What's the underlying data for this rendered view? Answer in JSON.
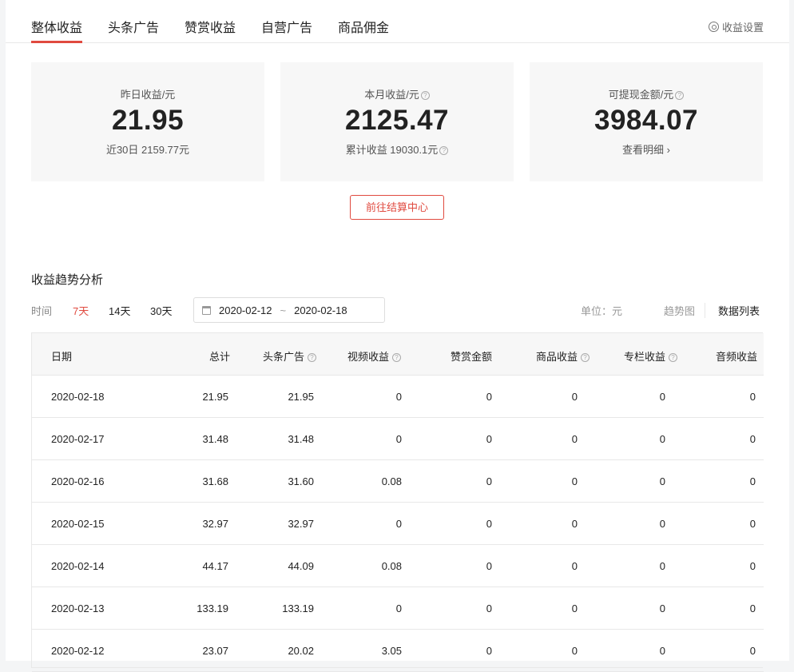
{
  "tabs": [
    "整体收益",
    "头条广告",
    "赞赏收益",
    "自营广告",
    "商品佣金"
  ],
  "settings_label": "收益设置",
  "cards": [
    {
      "label": "昨日收益/元",
      "value": "21.95",
      "sub": "近30日 2159.77元",
      "help": false
    },
    {
      "label": "本月收益/元",
      "value": "2125.47",
      "sub": "累计收益 19030.1元",
      "help": true
    },
    {
      "label": "可提现金额/元",
      "value": "3984.07",
      "sub": "查看明细 ›",
      "help": true
    }
  ],
  "settle_button": "前往结算中心",
  "section_title": "收益趋势分析",
  "filter": {
    "label": "时间",
    "options": [
      "7天",
      "14天",
      "30天"
    ],
    "active": "7天",
    "start": "2020-02-12",
    "sep": "~",
    "end": "2020-02-18",
    "unit": "单位：元",
    "view_chart": "趋势图",
    "view_table": "数据列表"
  },
  "accent": "#e04a3f",
  "table": {
    "headers": [
      "日期",
      "总计",
      "头条广告",
      "视频收益",
      "赞赏金额",
      "商品收益",
      "专栏收益",
      "音频收益"
    ],
    "rows": [
      [
        "2020-02-18",
        "21.95",
        "21.95",
        "0",
        "0",
        "0",
        "0",
        "0"
      ],
      [
        "2020-02-17",
        "31.48",
        "31.48",
        "0",
        "0",
        "0",
        "0",
        "0"
      ],
      [
        "2020-02-16",
        "31.68",
        "31.60",
        "0.08",
        "0",
        "0",
        "0",
        "0"
      ],
      [
        "2020-02-15",
        "32.97",
        "32.97",
        "0",
        "0",
        "0",
        "0",
        "0"
      ],
      [
        "2020-02-14",
        "44.17",
        "44.09",
        "0.08",
        "0",
        "0",
        "0",
        "0"
      ],
      [
        "2020-02-13",
        "133.19",
        "133.19",
        "0",
        "0",
        "0",
        "0",
        "0"
      ],
      [
        "2020-02-12",
        "23.07",
        "20.02",
        "3.05",
        "0",
        "0",
        "0",
        "0"
      ]
    ]
  }
}
